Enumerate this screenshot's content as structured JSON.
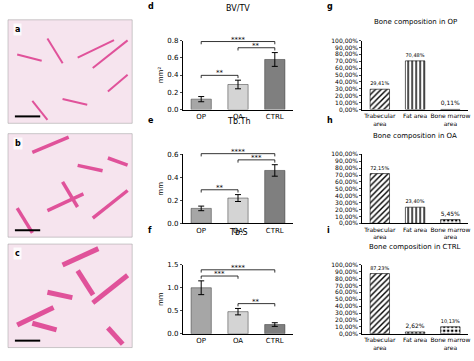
{
  "image_panels": [
    {
      "label": "a"
    },
    {
      "label": "b"
    },
    {
      "label": "c"
    }
  ],
  "chart_data": [
    {
      "type": "bar",
      "title": "BV/TV",
      "annotations": [
        "d"
      ],
      "y_label": "mm²",
      "categories": [
        "OP",
        "OA",
        "CTRL"
      ],
      "values": [
        0.12,
        0.29,
        0.58
      ],
      "errors": [
        0.03,
        0.05,
        0.08
      ],
      "colors": [
        "#a6a6a6",
        "#d4d4d4",
        "#7f7f7f"
      ],
      "ylim": [
        0,
        0.8
      ],
      "yticks": [
        {
          "value": 0,
          "label": "0.0"
        },
        0.2,
        0.4,
        0.6,
        0.8
      ],
      "grid": false,
      "significance": [
        {
          "pair": [
            "OP",
            "OA"
          ],
          "label": "**"
        },
        {
          "pair": [
            "OA",
            "CTRL"
          ],
          "label": "**"
        },
        {
          "pair": [
            "OP",
            "CTRL"
          ],
          "label": "****"
        }
      ]
    },
    {
      "type": "bar",
      "title": "Tb.Th",
      "annotations": [
        "e"
      ],
      "y_label": "mm",
      "categories": [
        "OP",
        "OA",
        "CTRL"
      ],
      "values": [
        0.13,
        0.22,
        0.46
      ],
      "errors": [
        0.02,
        0.03,
        0.05
      ],
      "colors": [
        "#a6a6a6",
        "#d4d4d4",
        "#7f7f7f"
      ],
      "ylim": [
        0,
        0.6
      ],
      "yticks": [
        {
          "value": 0,
          "label": "0.0"
        },
        0.2,
        0.4,
        0.6
      ],
      "grid": false,
      "significance": [
        {
          "pair": [
            "OP",
            "OA"
          ],
          "label": "**"
        },
        {
          "pair": [
            "OA",
            "CTRL"
          ],
          "label": "***"
        },
        {
          "pair": [
            "OP",
            "CTRL"
          ],
          "label": "****"
        }
      ]
    },
    {
      "type": "bar",
      "title": "Tb.S",
      "annotations": [
        "f"
      ],
      "y_label": "mm",
      "categories": [
        "OP",
        "OA",
        "CTRL"
      ],
      "values": [
        1.0,
        0.48,
        0.2
      ],
      "errors": [
        0.15,
        0.07,
        0.04
      ],
      "colors": [
        "#a6a6a6",
        "#d4d4d4",
        "#7f7f7f"
      ],
      "ylim": [
        0,
        1.5
      ],
      "yticks": [
        {
          "value": 0,
          "label": "0.0"
        },
        0.5,
        {
          "value": 1,
          "label": "1.0"
        },
        1.5
      ],
      "grid": false,
      "significance": [
        {
          "pair": [
            "OP",
            "OA"
          ],
          "label": "***"
        },
        {
          "pair": [
            "OA",
            "CTRL"
          ],
          "label": "**"
        },
        {
          "pair": [
            "OP",
            "CTRL"
          ],
          "label": "****"
        }
      ]
    },
    {
      "type": "bar",
      "title": "Bone composition in OP",
      "annotations": [
        "g"
      ],
      "categories": [
        "Trabecular area",
        "Fat area",
        "Bone marrow area"
      ],
      "values": [
        29.41,
        70.48,
        0.11
      ],
      "value_labels": [
        "29,41%",
        "70,48%",
        "0,11%"
      ],
      "data_labels": true,
      "color": "#000000",
      "ylim": [
        0,
        100
      ],
      "grid": false,
      "yticks": [
        {
          "value": 0,
          "label": "0,00%"
        },
        {
          "value": 10,
          "label": "10,00%"
        },
        {
          "value": 20,
          "label": "20,00%"
        },
        {
          "value": 30,
          "label": "30,00%"
        },
        {
          "value": 40,
          "label": "40,00%"
        },
        {
          "value": 50,
          "label": "50,00%"
        },
        {
          "value": 60,
          "label": "60,00%"
        },
        {
          "value": 70,
          "label": "70,00%"
        },
        {
          "value": 80,
          "label": "80,00%"
        },
        {
          "value": 90,
          "label": "90,00%"
        },
        {
          "value": 100,
          "label": "100,00%"
        }
      ]
    },
    {
      "type": "bar",
      "title": "Bone composition in OA",
      "annotations": [
        "h"
      ],
      "categories": [
        "Trabecular area",
        "Fat area",
        "Bone marrow area"
      ],
      "values": [
        72.15,
        23.4,
        5.45
      ],
      "value_labels": [
        "72,15%",
        "23,40%",
        "5,45%"
      ],
      "data_labels": true,
      "color": "#000000",
      "ylim": [
        0,
        100
      ],
      "grid": false,
      "yticks": [
        {
          "value": 0,
          "label": "0,00%"
        },
        {
          "value": 10,
          "label": "10,00%"
        },
        {
          "value": 20,
          "label": "20,00%"
        },
        {
          "value": 30,
          "label": "30,00%"
        },
        {
          "value": 40,
          "label": "40,00%"
        },
        {
          "value": 50,
          "label": "50,00%"
        },
        {
          "value": 60,
          "label": "60,00%"
        },
        {
          "value": 70,
          "label": "70,00%"
        },
        {
          "value": 80,
          "label": "80,00%"
        },
        {
          "value": 90,
          "label": "90,00%"
        },
        {
          "value": 100,
          "label": "100,00%"
        }
      ]
    },
    {
      "type": "bar",
      "title": "Bone composition in CTRL",
      "annotations": [
        "i"
      ],
      "categories": [
        "Trabecular area",
        "Fat area",
        "Bone marrow area"
      ],
      "values": [
        87.23,
        2.62,
        10.13
      ],
      "value_labels": [
        "87,23%",
        "2,62%",
        "10,13%"
      ],
      "data_labels": true,
      "color": "#000000",
      "ylim": [
        0,
        100
      ],
      "grid": false,
      "yticks": [
        {
          "value": 0,
          "label": "0,00%"
        },
        {
          "value": 10,
          "label": "10,00%"
        },
        {
          "value": 20,
          "label": "20,00%"
        },
        {
          "value": 30,
          "label": "30,00%"
        },
        {
          "value": 40,
          "label": "40,00%"
        },
        {
          "value": 50,
          "label": "50,00%"
        },
        {
          "value": 60,
          "label": "60,00%"
        },
        {
          "value": 70,
          "label": "70,00%"
        },
        {
          "value": 80,
          "label": "80,00%"
        },
        {
          "value": 90,
          "label": "90,00%"
        },
        {
          "value": 100,
          "label": "100,00%"
        }
      ]
    }
  ]
}
